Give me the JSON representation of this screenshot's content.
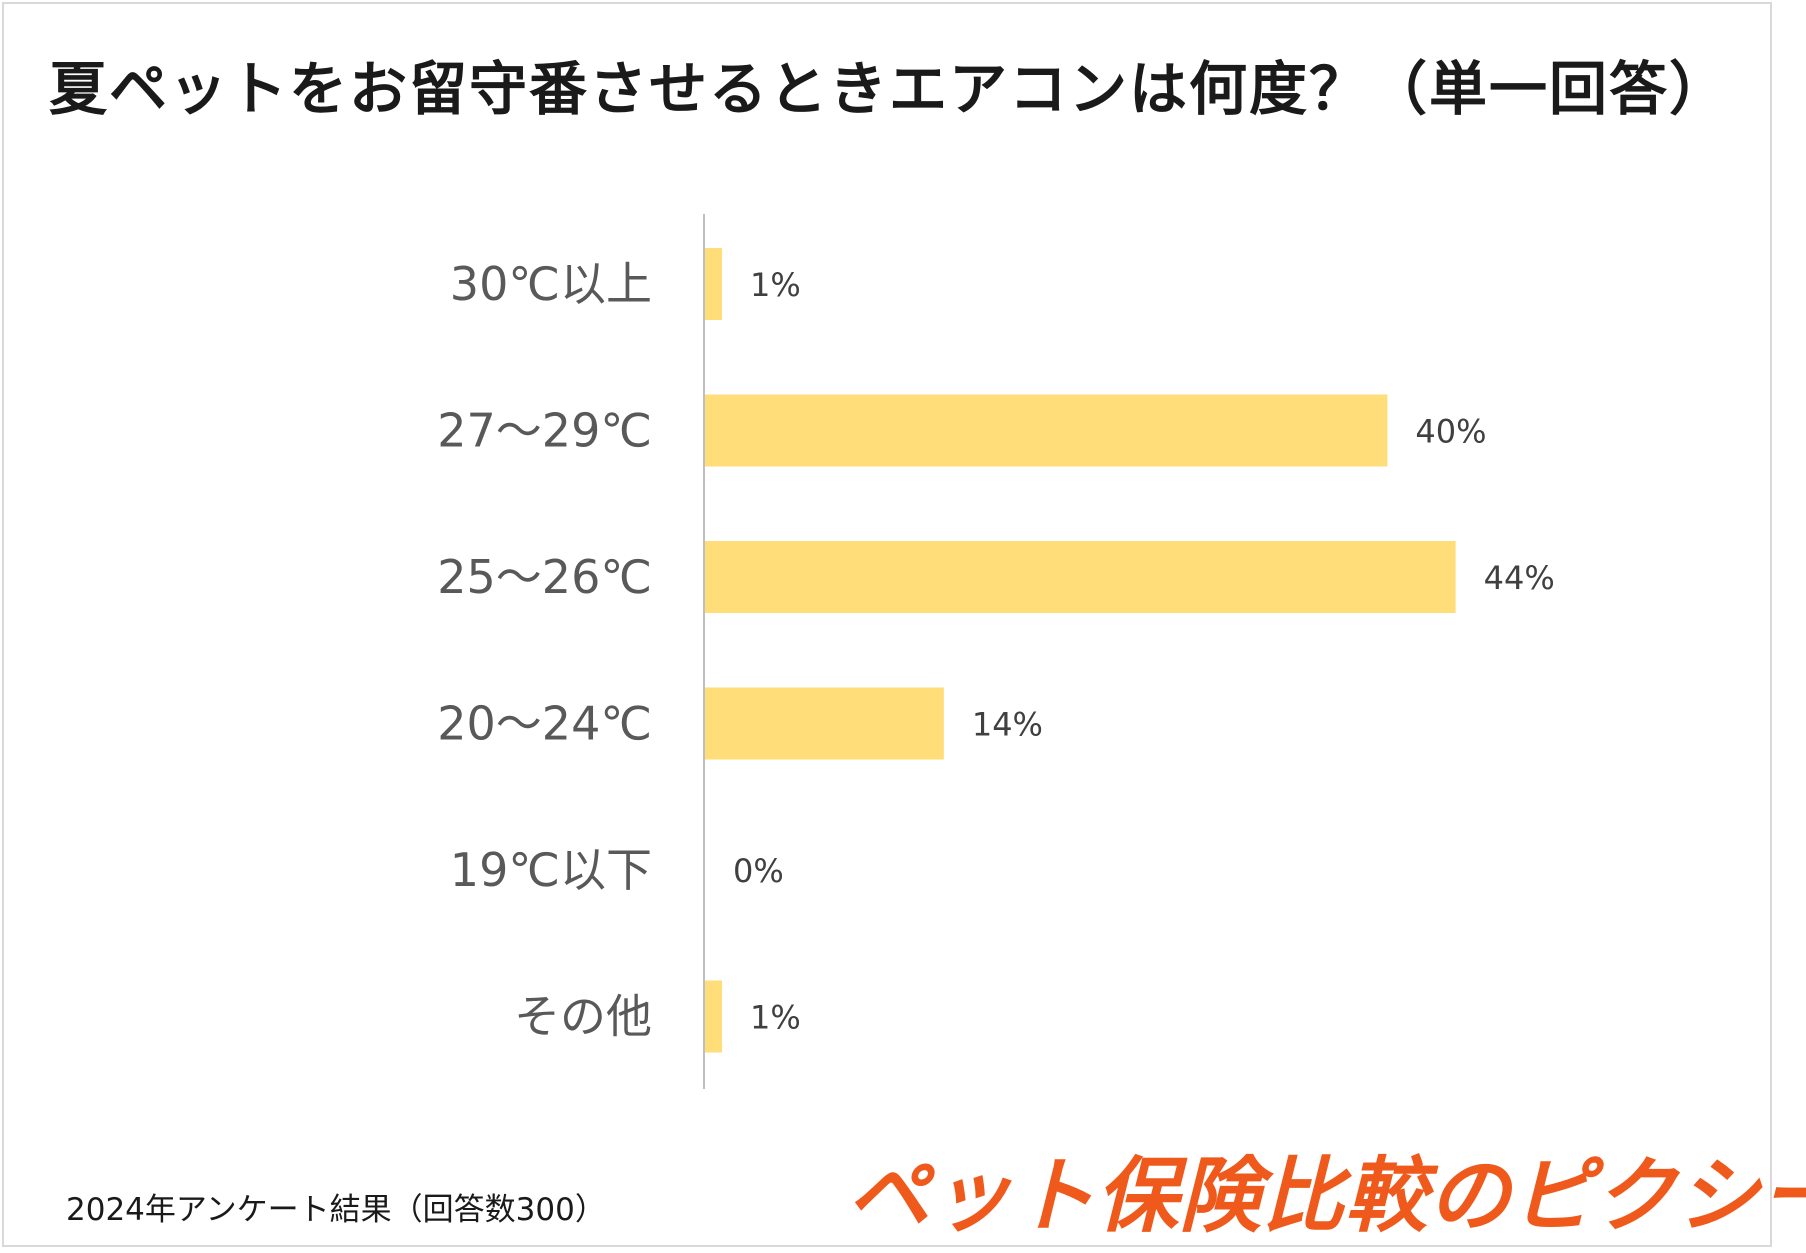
{
  "title": "夏ペットをお留守番させるときエアコンは何度？（単一回答）",
  "footnote": "2024年アンケート結果（回答数300）",
  "brand": "ペット保険比較のピクシー",
  "colors": {
    "bar": "#FFDD78",
    "axis": "#BFBFBF",
    "brand": "#EF5A1C"
  },
  "chart_data": {
    "type": "bar",
    "orientation": "horizontal",
    "title": "夏ペットをお留守番させるときエアコンは何度？（単一回答）",
    "categories": [
      "30℃以上",
      "27～29℃",
      "25～26℃",
      "20～24℃",
      "19℃以下",
      "その他"
    ],
    "values": [
      1,
      40,
      44,
      14,
      0,
      1
    ],
    "value_labels": [
      "1%",
      "40%",
      "44%",
      "14%",
      "0%",
      "1%"
    ],
    "unit": "%",
    "xlim": [
      0,
      50
    ],
    "grid": false,
    "legend": "none"
  }
}
